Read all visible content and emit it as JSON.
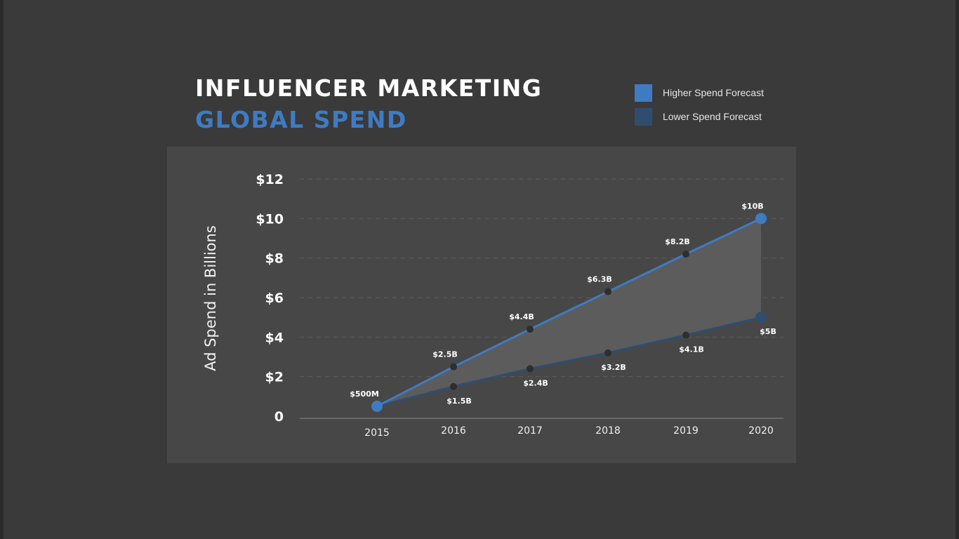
{
  "chart_data": {
    "type": "line",
    "title": "INFLUENCER MARKETING",
    "subtitle": "GLOBAL SPEND",
    "ylabel": "Ad Spend in Billions",
    "xlabel": "",
    "x": [
      "2015",
      "2016",
      "2017",
      "2018",
      "2019",
      "2020"
    ],
    "ylim": [
      0,
      12
    ],
    "yticks": [
      {
        "value": 0,
        "label": "0"
      },
      {
        "value": 2,
        "label": "$2"
      },
      {
        "value": 4,
        "label": "$4"
      },
      {
        "value": 6,
        "label": "$6"
      },
      {
        "value": 8,
        "label": "$8"
      },
      {
        "value": 10,
        "label": "$10"
      },
      {
        "value": 12,
        "label": "$12"
      }
    ],
    "grid": true,
    "legend_position": "top-right",
    "area_between_series": true,
    "series": [
      {
        "name": "Higher Spend Forecast",
        "color": "#3f7bc2",
        "values": [
          0.5,
          2.5,
          4.4,
          6.3,
          8.2,
          10
        ],
        "labels": [
          "$500M",
          "$2.5B",
          "$4.4B",
          "$6.3B",
          "$8.2B",
          "$10B"
        ]
      },
      {
        "name": "Lower Spend Forecast",
        "color": "#2f4e6e",
        "values": [
          0.5,
          1.5,
          2.4,
          3.2,
          4.1,
          5
        ],
        "labels": [
          "$500M",
          "$1.5B",
          "$2.4B",
          "$3.2B",
          "$4.1B",
          "$5B"
        ]
      }
    ]
  },
  "colors": {
    "background": "#3a3a3a",
    "panel": "#474747",
    "area_fill": "#5e5e5e",
    "accent": "#3f7bc2",
    "secondary": "#2f4e6e"
  }
}
